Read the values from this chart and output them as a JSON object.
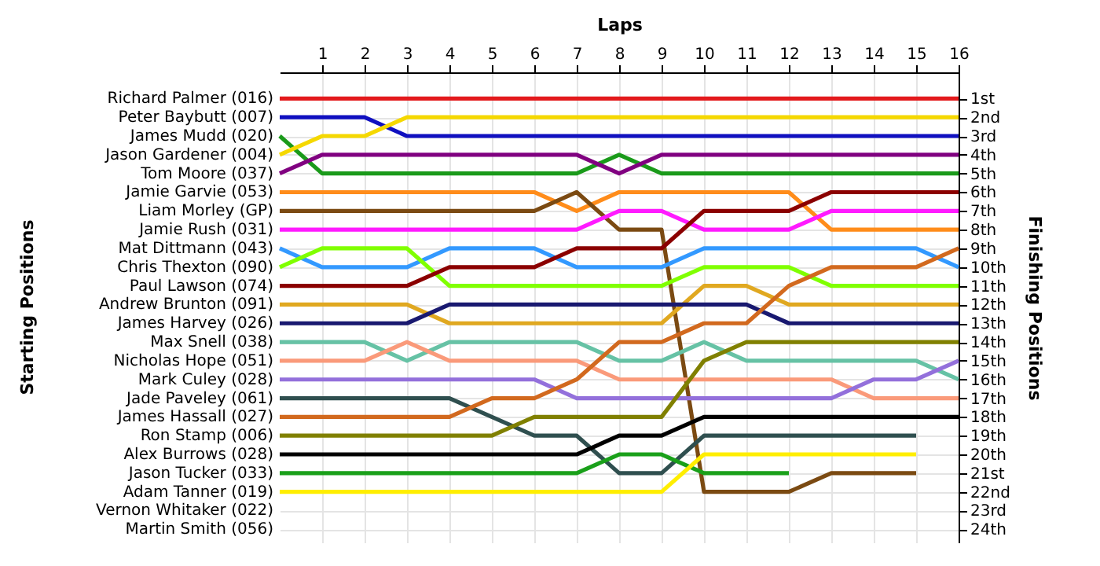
{
  "chart_data": {
    "type": "line",
    "xlabel": "Laps",
    "ylabel": "Finishing Positions",
    "annotations": [
      "Starting Positions",
      "Vernon Whitaker (022)",
      "Martin Smith (056)"
    ],
    "x": [
      0,
      1,
      2,
      3,
      4,
      5,
      6,
      7,
      8,
      9,
      10,
      11,
      12,
      13,
      14,
      15,
      16
    ],
    "xlim": [
      0,
      16
    ],
    "xticks": [
      1,
      2,
      3,
      4,
      5,
      6,
      7,
      8,
      9,
      10,
      11,
      12,
      13,
      14,
      15,
      16
    ],
    "ylim": [
      24.7,
      -0.4
    ],
    "yticks": [
      {
        "value": 1,
        "label": "1st"
      },
      {
        "value": 2,
        "label": "2nd"
      },
      {
        "value": 3,
        "label": "3rd"
      },
      {
        "value": 4,
        "label": "4th"
      },
      {
        "value": 5,
        "label": "5th"
      },
      {
        "value": 6,
        "label": "6th"
      },
      {
        "value": 7,
        "label": "7th"
      },
      {
        "value": 8,
        "label": "8th"
      },
      {
        "value": 9,
        "label": "9th"
      },
      {
        "value": 10,
        "label": "10th"
      },
      {
        "value": 11,
        "label": "11th"
      },
      {
        "value": 12,
        "label": "12th"
      },
      {
        "value": 13,
        "label": "13th"
      },
      {
        "value": 14,
        "label": "14th"
      },
      {
        "value": 15,
        "label": "15th"
      },
      {
        "value": 16,
        "label": "16th"
      },
      {
        "value": 17,
        "label": "17th"
      },
      {
        "value": 18,
        "label": "18th"
      },
      {
        "value": 19,
        "label": "19th"
      },
      {
        "value": 20,
        "label": "20th"
      },
      {
        "value": 21,
        "label": "21st"
      },
      {
        "value": 22,
        "label": "22nd"
      },
      {
        "value": 23,
        "label": "23rd"
      },
      {
        "value": 24,
        "label": "24th"
      }
    ],
    "grid": true,
    "line_style": "solid",
    "marker": "none",
    "legend": "left",
    "series": [
      {
        "name": "Richard Palmer (016)",
        "color": "#e31a1c",
        "values": [
          1,
          1,
          1,
          1,
          1,
          1,
          1,
          1,
          1,
          1,
          1,
          1,
          1,
          1,
          1,
          1,
          1
        ]
      },
      {
        "name": "Peter Baybutt (007)",
        "color": "#1010c0",
        "values": [
          2,
          2,
          2,
          3,
          3,
          3,
          3,
          3,
          3,
          3,
          3,
          3,
          3,
          3,
          3,
          3,
          3
        ]
      },
      {
        "name": "James Mudd (020)",
        "color": "#1a9a1a",
        "values": [
          3,
          5,
          5,
          5,
          5,
          5,
          5,
          5,
          4,
          5,
          5,
          5,
          5,
          5,
          5,
          5,
          5
        ]
      },
      {
        "name": "Jason Gardener (004)",
        "color": "#f5d800",
        "values": [
          4,
          3,
          3,
          2,
          2,
          2,
          2,
          2,
          2,
          2,
          2,
          2,
          2,
          2,
          2,
          2,
          2
        ]
      },
      {
        "name": "Tom Moore (037)",
        "color": "#800080",
        "values": [
          5,
          4,
          4,
          4,
          4,
          4,
          4,
          4,
          5,
          4,
          4,
          4,
          4,
          4,
          4,
          4,
          4
        ]
      },
      {
        "name": "Jamie Garvie (053)",
        "color": "#ff8c1a",
        "values": [
          6,
          6,
          6,
          6,
          6,
          6,
          6,
          7,
          6,
          6,
          6,
          6,
          6,
          8,
          8,
          8,
          8
        ]
      },
      {
        "name": "Liam Morley (GP)",
        "color": "#7b4a12",
        "values": [
          7,
          7,
          7,
          7,
          7,
          7,
          7,
          6,
          8,
          8,
          22,
          22,
          22,
          21,
          21,
          21,
          null
        ]
      },
      {
        "name": "Jamie Rush (031)",
        "color": "#ff1aff",
        "values": [
          8,
          8,
          8,
          8,
          8,
          8,
          8,
          8,
          7,
          7,
          8,
          8,
          8,
          7,
          7,
          7,
          7
        ]
      },
      {
        "name": "Mat Dittmann (043)",
        "color": "#3399ff",
        "values": [
          9,
          10,
          10,
          10,
          9,
          9,
          9,
          10,
          10,
          10,
          9,
          9,
          9,
          9,
          9,
          9,
          10
        ]
      },
      {
        "name": "Chris Thexton (090)",
        "color": "#80ff00",
        "values": [
          10,
          9,
          9,
          9,
          11,
          11,
          11,
          11,
          11,
          11,
          10,
          10,
          10,
          11,
          11,
          11,
          11
        ]
      },
      {
        "name": "Paul Lawson (074)",
        "color": "#8b0000",
        "values": [
          11,
          11,
          11,
          11,
          10,
          10,
          10,
          9,
          9,
          9,
          7,
          7,
          7,
          6,
          6,
          6,
          6
        ]
      },
      {
        "name": "Andrew Brunton (091)",
        "color": "#e0a820",
        "values": [
          12,
          12,
          12,
          12,
          13,
          13,
          13,
          13,
          13,
          13,
          11,
          11,
          12,
          12,
          12,
          12,
          12
        ]
      },
      {
        "name": "James Harvey (026)",
        "color": "#191970",
        "values": [
          13,
          13,
          13,
          13,
          12,
          12,
          12,
          12,
          12,
          12,
          12,
          12,
          13,
          13,
          13,
          13,
          13
        ]
      },
      {
        "name": "Max Snell (038)",
        "color": "#66c2a5",
        "values": [
          14,
          14,
          14,
          15,
          14,
          14,
          14,
          14,
          15,
          15,
          14,
          15,
          15,
          15,
          15,
          15,
          16
        ]
      },
      {
        "name": "Nicholas Hope (051)",
        "color": "#fa9a7a",
        "values": [
          15,
          15,
          15,
          14,
          15,
          15,
          15,
          15,
          16,
          16,
          16,
          16,
          16,
          16,
          17,
          17,
          17
        ]
      },
      {
        "name": "Mark Culey (028)",
        "color": "#9370db",
        "values": [
          16,
          16,
          16,
          16,
          16,
          16,
          16,
          17,
          17,
          17,
          17,
          17,
          17,
          17,
          16,
          16,
          15
        ]
      },
      {
        "name": "Jade Paveley (061)",
        "color": "#2f4f4f",
        "values": [
          17,
          17,
          17,
          17,
          17,
          18,
          19,
          19,
          21,
          21,
          19,
          19,
          19,
          19,
          19,
          19,
          null
        ]
      },
      {
        "name": "James Hassall (027)",
        "color": "#d2691e",
        "values": [
          18,
          18,
          18,
          18,
          18,
          17,
          17,
          16,
          14,
          14,
          13,
          13,
          11,
          10,
          10,
          10,
          9
        ]
      },
      {
        "name": "Ron Stamp (006)",
        "color": "#808000",
        "values": [
          19,
          19,
          19,
          19,
          19,
          19,
          18,
          18,
          18,
          18,
          15,
          14,
          14,
          14,
          14,
          14,
          14
        ]
      },
      {
        "name": "Alex Burrows (028)",
        "color": "#000000",
        "values": [
          20,
          20,
          20,
          20,
          20,
          20,
          20,
          20,
          19,
          19,
          18,
          18,
          18,
          18,
          18,
          18,
          18
        ]
      },
      {
        "name": "Jason Tucker (033)",
        "color": "#1aa01a",
        "values": [
          21,
          21,
          21,
          21,
          21,
          21,
          21,
          21,
          20,
          20,
          21,
          21,
          21,
          null,
          null,
          null,
          null
        ]
      },
      {
        "name": "Adam Tanner (019)",
        "color": "#ffee00",
        "values": [
          22,
          22,
          22,
          22,
          22,
          22,
          22,
          22,
          22,
          22,
          20,
          20,
          20,
          20,
          20,
          20,
          null
        ]
      }
    ]
  }
}
